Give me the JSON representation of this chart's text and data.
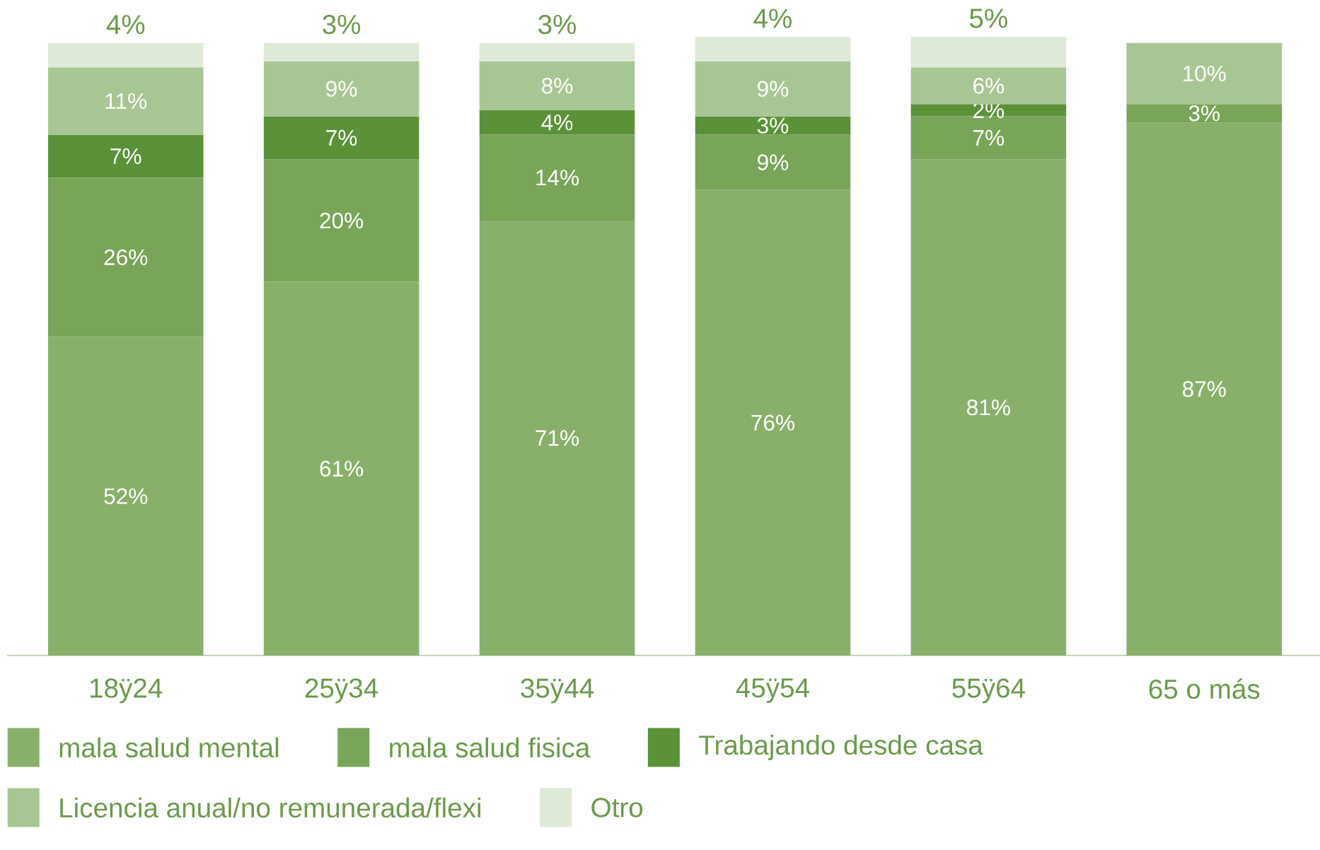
{
  "chart_data": {
    "type": "bar",
    "stacked": true,
    "legend": "bottom",
    "categories": [
      "18ÿ24",
      "25ÿ34",
      "35ÿ44",
      "45ÿ54",
      "55ÿ64",
      "65 o más"
    ],
    "series": [
      {
        "name": "mala salud mental",
        "color": "#88b06a",
        "values": [
          52,
          61,
          71,
          76,
          81,
          87
        ],
        "value_labels": [
          "52%",
          "61%",
          "71%",
          "76%",
          "81%",
          "87%"
        ]
      },
      {
        "name": "mala salud fisica",
        "color": "#78a558",
        "values": [
          26,
          20,
          14,
          9,
          7,
          3
        ],
        "value_labels": [
          "26%",
          "20%",
          "14%",
          "9%",
          "7%",
          "3%"
        ]
      },
      {
        "name": "Trabajando desde casa",
        "color": "#5b9238",
        "values": [
          7,
          7,
          4,
          3,
          2,
          null
        ],
        "value_labels": [
          "7%",
          "7%",
          "4%",
          "3%",
          "2%",
          null
        ]
      },
      {
        "name": "Licencia anual/no remunerada/flexi",
        "color": "#a8c693",
        "values": [
          11,
          9,
          8,
          9,
          6,
          10
        ],
        "value_labels": [
          "11%",
          "9%",
          "8%",
          "9%",
          "6%",
          "10%"
        ]
      },
      {
        "name": "Otro",
        "color": "#dfe9d7",
        "values": [
          4,
          3,
          3,
          4,
          5,
          null
        ],
        "value_labels": [
          "4%",
          "3%",
          "3%",
          "4%",
          "5%",
          null
        ]
      }
    ]
  }
}
